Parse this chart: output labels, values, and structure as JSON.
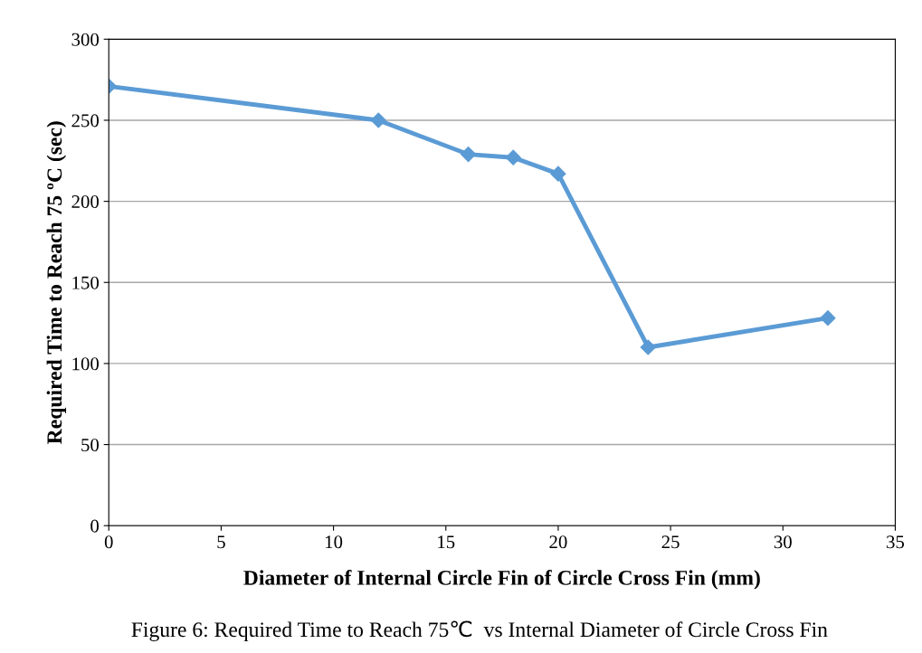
{
  "chart_data": {
    "type": "line",
    "xlabel": "Diameter of Internal Circle Fin of Circle Cross Fin (mm)",
    "ylabel": "Required Time to Reach 75 ºC (sec)",
    "annotations": [
      "Figure 6: Required Time to Reach 75℃  vs Internal Diameter of Circle Cross Fin"
    ],
    "x": [
      0,
      12,
      16,
      18,
      20,
      24,
      32
    ],
    "series": [
      {
        "color": "#5b9bd5",
        "values": [
          271,
          250,
          229,
          227,
          217,
          110,
          128
        ]
      }
    ],
    "xlim": [
      0,
      35
    ],
    "xticks": [
      0,
      5,
      10,
      15,
      20,
      25,
      30,
      35
    ],
    "ylim": [
      0,
      300
    ],
    "yticks": [
      0,
      50,
      100,
      150,
      200,
      250,
      300
    ],
    "grid": "y",
    "marker": "diamond",
    "line_style": "solid",
    "legend": false
  }
}
